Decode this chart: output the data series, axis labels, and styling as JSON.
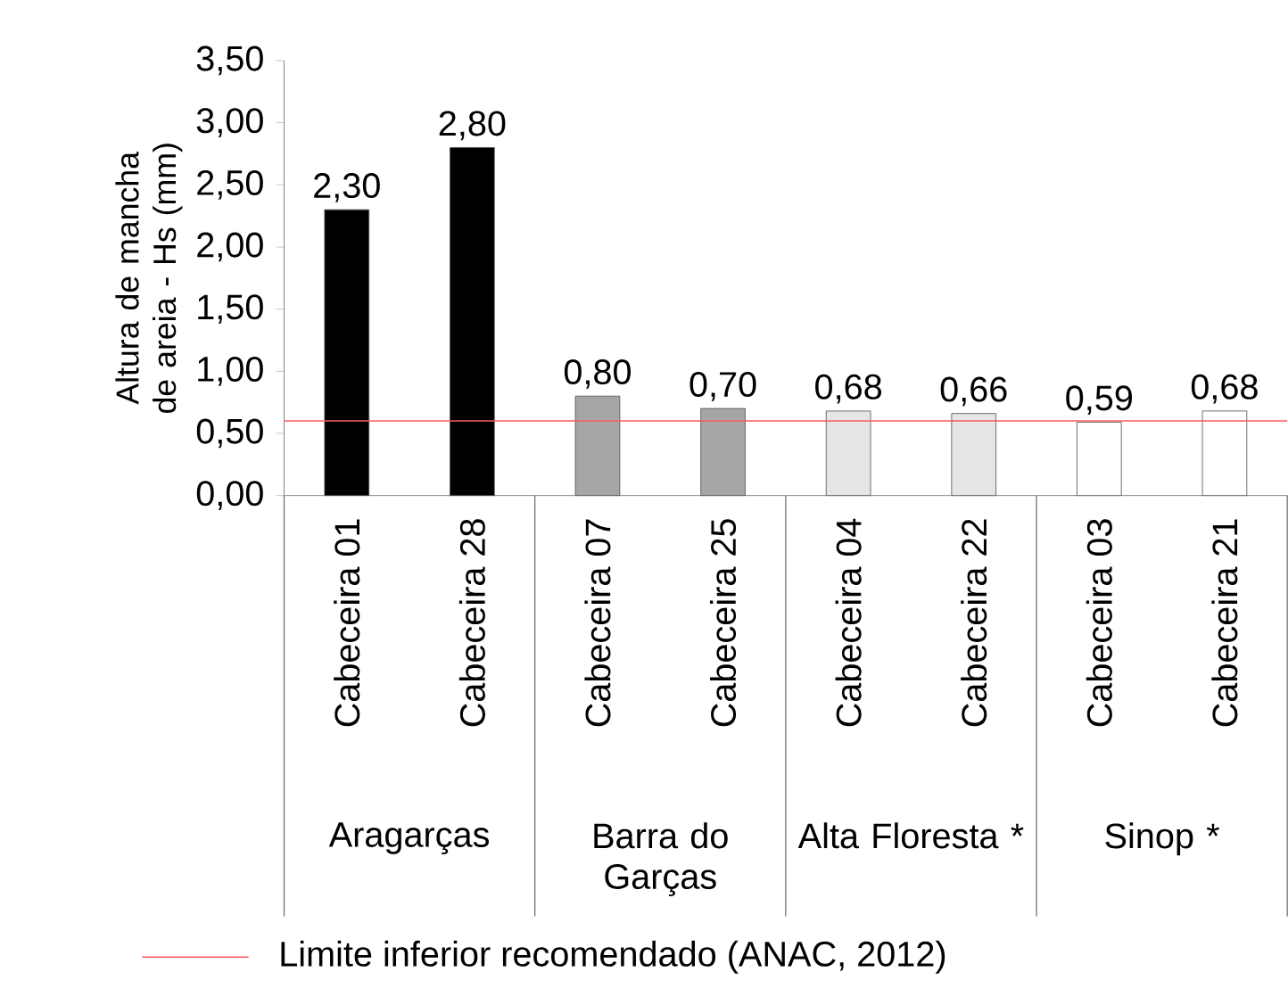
{
  "chart_data": {
    "type": "bar",
    "ylabel": "Altura de mancha de areia - Hs (mm)",
    "categories": [
      "Cabeceira 01",
      "Cabeceira 28",
      "Cabeceira 07",
      "Cabeceira 25",
      "Cabeceira 04",
      "Cabeceira 22",
      "Cabeceira 03",
      "Cabeceira 21"
    ],
    "values": [
      2.3,
      2.8,
      0.8,
      0.7,
      0.68,
      0.66,
      0.59,
      0.68
    ],
    "value_labels": [
      "2,30",
      "2,80",
      "0,80",
      "0,70",
      "0,68",
      "0,66",
      "0,59",
      "0,68"
    ],
    "colors": [
      "#000000",
      "#000000",
      "#a6a6a6",
      "#a6a6a6",
      "#e6e6e6",
      "#e6e6e6",
      "#ffffff",
      "#ffffff"
    ],
    "annotations": [
      "Aragarças",
      "Barra do Garças",
      "Alta Floresta *",
      "Sinop *"
    ],
    "ylim": [
      0,
      3.5
    ],
    "yticks": [
      {
        "value": 0,
        "label": "0,00"
      },
      {
        "value": 0.5,
        "label": "0,50"
      },
      {
        "value": 1,
        "label": "1,00"
      },
      {
        "value": 1.5,
        "label": "1,50"
      },
      {
        "value": 2,
        "label": "2,00"
      },
      {
        "value": 2.5,
        "label": "2,50"
      },
      {
        "value": 3,
        "label": "3,00"
      },
      {
        "value": 3.5,
        "label": "3,50"
      }
    ],
    "ref_lines": [
      {
        "axis": "y",
        "value": 0.6,
        "label": "Limite inferior recomendado (ANAC, 2012)",
        "color": "#ff5a5a"
      }
    ],
    "legend": "bottom",
    "grid": false
  }
}
